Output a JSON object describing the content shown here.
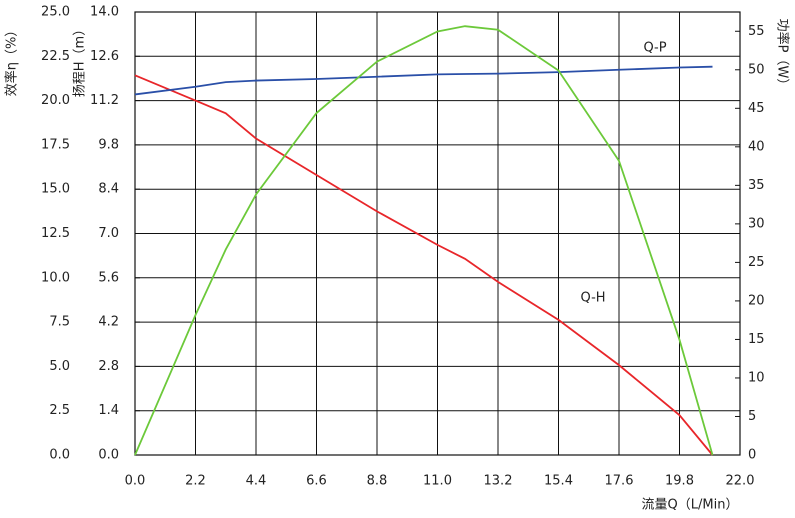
{
  "chart_data": {
    "type": "line",
    "x_label": "流量Q（L/Min）",
    "y_label": "扬程H（m）",
    "y2_label": "功率P（W）",
    "y3_label": "效率η（%）",
    "annotations": [
      "Q-P",
      "Q-H"
    ],
    "x": [
      0,
      2.2,
      3.3,
      4.4,
      6.6,
      8.8,
      11,
      12,
      13.2,
      15.4,
      17.6,
      19.8,
      21
    ],
    "xlim": [
      0,
      22
    ],
    "xticks": [
      {
        "value": 0,
        "label": "0.0"
      },
      2.2,
      4.4,
      6.6,
      8.8,
      {
        "value": 11,
        "label": "11.0"
      },
      13.2,
      15.4,
      17.6,
      19.8,
      {
        "value": 22,
        "label": "22.0"
      }
    ],
    "ylim": [
      0,
      14
    ],
    "yticks": [
      {
        "value": 0,
        "label": "0.0"
      },
      1.4,
      2.8,
      4.2,
      5.6,
      {
        "value": 7,
        "label": "7.0"
      },
      8.4,
      9.8,
      11.2,
      12.6,
      {
        "value": 14,
        "label": "14.0"
      }
    ],
    "y2lim": [
      0,
      57.5
    ],
    "y2ticks": [
      0,
      5,
      10,
      15,
      20,
      25,
      30,
      35,
      40,
      45,
      50,
      55
    ],
    "y3lim": [
      0,
      25
    ],
    "y3ticks": [
      {
        "value": 0,
        "label": "0.0"
      },
      2.5,
      {
        "value": 5,
        "label": "5.0"
      },
      7.5,
      {
        "value": 10,
        "label": "10.0"
      },
      12.5,
      {
        "value": 15,
        "label": "15.0"
      },
      17.5,
      {
        "value": 20,
        "label": "20.0"
      },
      22.5,
      {
        "value": 25,
        "label": "25.0"
      }
    ],
    "grid": true,
    "series": [
      {
        "name": "Q-H",
        "color": "#e8262a",
        "axis": "y",
        "values": [
          12.0,
          11.2,
          10.8,
          10.0,
          8.85,
          7.7,
          6.64,
          6.2,
          5.47,
          4.27,
          2.84,
          1.26,
          0
        ]
      },
      {
        "name": "Q-P",
        "color": "#2a4fa8",
        "axis": "y2",
        "values": [
          46.8,
          47.8,
          48.4,
          48.6,
          48.8,
          49.1,
          49.4,
          49.45,
          49.5,
          49.7,
          50.0,
          50.3,
          50.4
        ]
      },
      {
        "color": "#6cc93a",
        "axis": "y3",
        "values": [
          0,
          7.9,
          11.6,
          14.7,
          19.3,
          22.2,
          23.9,
          24.2,
          24.0,
          21.7,
          16.6,
          6.5,
          0
        ]
      }
    ]
  }
}
